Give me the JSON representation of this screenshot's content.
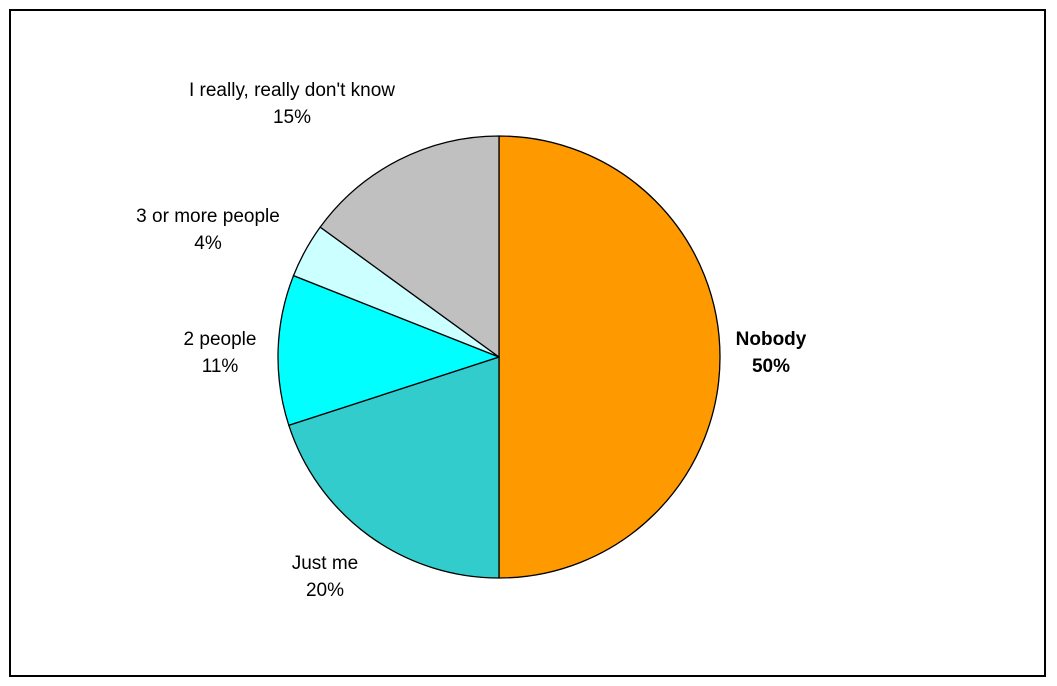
{
  "chart_data": {
    "type": "pie",
    "slices": [
      {
        "label": "Nobody",
        "value": 50,
        "value_label": "50%",
        "color": "#FF9900",
        "bold": true
      },
      {
        "label": "Just me",
        "value": 20,
        "value_label": "20%",
        "color": "#33CCCC",
        "bold": false
      },
      {
        "label": "2 people",
        "value": 11,
        "value_label": "11%",
        "color": "#00FFFF",
        "bold": false
      },
      {
        "label": "3 or more people",
        "value": 4,
        "value_label": "4%",
        "color": "#CCFFFF",
        "bold": false
      },
      {
        "label": "I really, really don't know",
        "value": 15,
        "value_label": "15%",
        "color": "#C0C0C0",
        "bold": false
      }
    ],
    "start_angle": "12 o'clock",
    "direction": "clockwise",
    "legend": "none"
  }
}
